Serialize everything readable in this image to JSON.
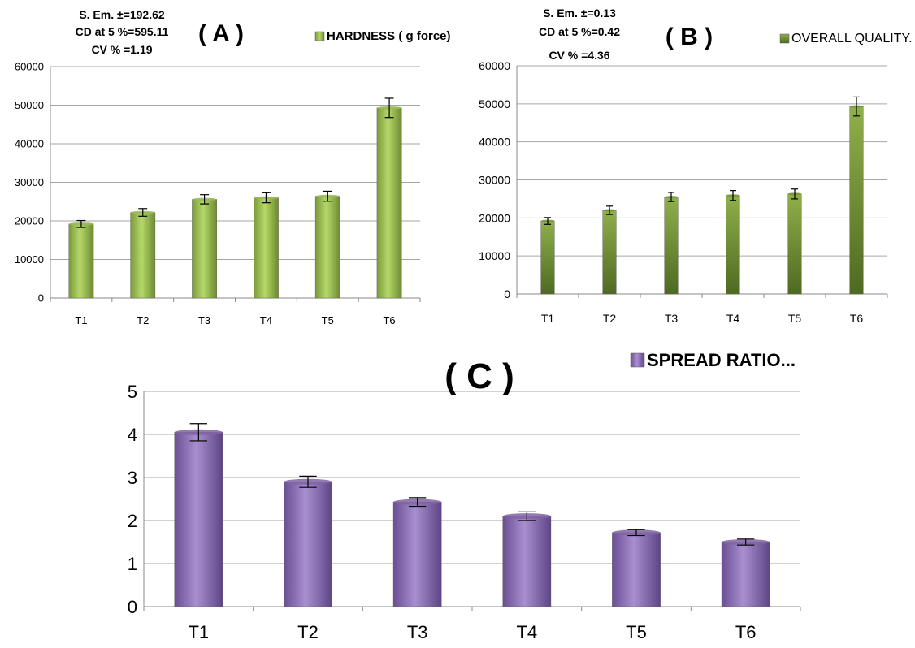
{
  "chart_data": [
    {
      "panel_label": "( A )",
      "type": "bar",
      "stats": [
        "S. Em. ±=192.62",
        "CD at 5 %=595.11",
        "CV % =1.19"
      ],
      "legend": "HARDNESS ( g force)",
      "categories": [
        "T1",
        "T2",
        "T3",
        "T4",
        "T5",
        "T6"
      ],
      "values": [
        19200,
        22200,
        25600,
        26000,
        26400,
        49300
      ],
      "errors": [
        900,
        1000,
        1200,
        1300,
        1300,
        2500
      ],
      "ylim": [
        0,
        60000
      ],
      "yticks": [
        "0",
        "10000",
        "20000",
        "30000",
        "40000",
        "50000",
        "60000"
      ],
      "grid": true,
      "color": "#9bbb59"
    },
    {
      "panel_label": "( B )",
      "type": "bar",
      "stats": [
        "S. Em. ±=0.13",
        "CD at 5 %=0.42",
        "CV % =4.36"
      ],
      "legend": "OVERALL QUALITY.",
      "categories": [
        "T1",
        "T2",
        "T3",
        "T4",
        "T5",
        "T6"
      ],
      "values": [
        19200,
        22000,
        25500,
        25900,
        26300,
        49300
      ],
      "errors": [
        900,
        1100,
        1200,
        1300,
        1300,
        2500
      ],
      "ylim": [
        0,
        60000
      ],
      "yticks": [
        "0",
        "10000",
        "20000",
        "30000",
        "40000",
        "50000",
        "60000"
      ],
      "grid": true,
      "color": "#77933c"
    },
    {
      "panel_label": "( C )",
      "type": "bar",
      "legend": "SPREAD RATIO...",
      "categories": [
        "T1",
        "T2",
        "T3",
        "T4",
        "T5",
        "T6"
      ],
      "values": [
        4.05,
        2.9,
        2.43,
        2.1,
        1.72,
        1.5
      ],
      "errors": [
        0.2,
        0.13,
        0.1,
        0.1,
        0.07,
        0.07
      ],
      "ylim": [
        0,
        5
      ],
      "yticks": [
        "0",
        "1",
        "2",
        "3",
        "4",
        "5"
      ],
      "grid": true,
      "color": "#8064a2"
    }
  ]
}
